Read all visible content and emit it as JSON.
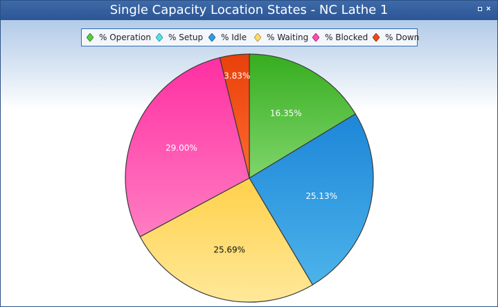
{
  "window": {
    "title": "Single Capacity Location States - NC Lathe 1"
  },
  "legend_items": [
    "% Operation",
    "% Setup",
    "% Idle",
    "% Waiting",
    "% Blocked",
    "% Down"
  ],
  "colors": {
    "operation": [
      "#7fd56b",
      "#36ad1f"
    ],
    "setup": [
      "#7fe9ef",
      "#2ec7cf"
    ],
    "idle": [
      "#4cb3ea",
      "#1d86d8"
    ],
    "waiting": [
      "#ffe89a",
      "#ffd14a"
    ],
    "blocked": [
      "#ff7dc2",
      "#ff2fa2"
    ],
    "down": [
      "#ff6a2e",
      "#e8400a"
    ]
  },
  "chart_data": {
    "type": "pie",
    "title": "Single Capacity Location States - NC Lathe 1",
    "slices": [
      {
        "name": "% Operation",
        "value": 16.35,
        "label": "16.35%"
      },
      {
        "name": "% Idle",
        "value": 25.13,
        "label": "25.13%"
      },
      {
        "name": "% Waiting",
        "value": 25.69,
        "label": "25.69%"
      },
      {
        "name": "% Blocked",
        "value": 29.0,
        "label": "29.00%"
      },
      {
        "name": "% Down",
        "value": 3.83,
        "label": "3.83%"
      }
    ],
    "legend_placement": "top-center",
    "start_direction": "clockwise-from-top"
  }
}
